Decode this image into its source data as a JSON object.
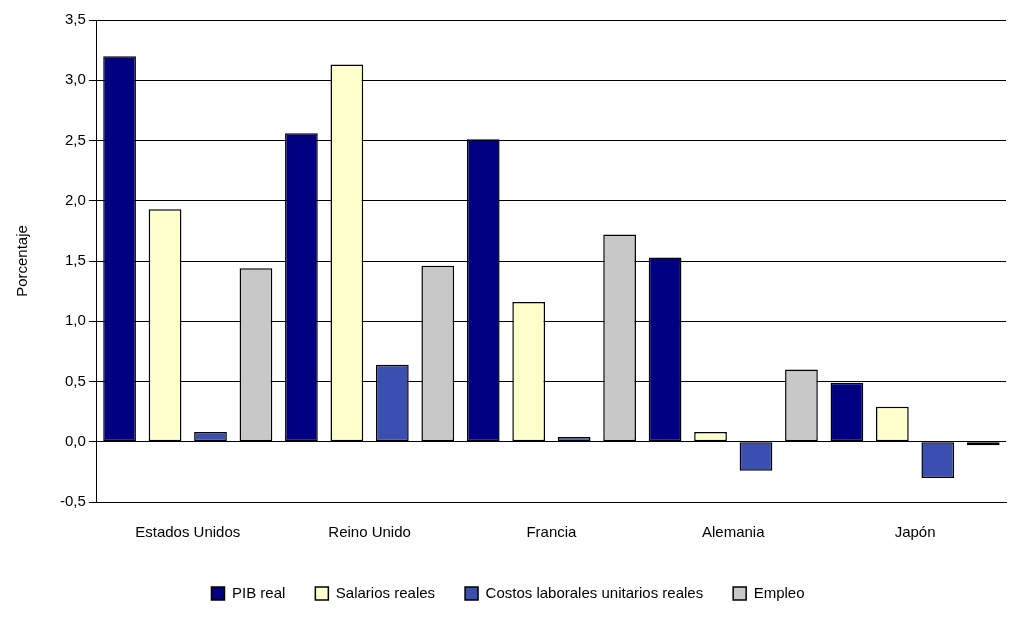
{
  "chart_data": {
    "type": "bar",
    "ylabel": "Porcentaje",
    "categories": [
      "Estados Unidos",
      "Reino Unido",
      "Francia",
      "Alemania",
      "Japón"
    ],
    "series": [
      {
        "name": "PIB real",
        "color": "#000080",
        "values": [
          3.2,
          2.56,
          2.51,
          1.53,
          0.49
        ]
      },
      {
        "name": "Salarios reales",
        "color": "#ffffcc",
        "values": [
          1.93,
          3.13,
          1.16,
          0.08,
          0.29
        ]
      },
      {
        "name": "Costos laborales unitarios reales",
        "color": "#3a4fb0",
        "values": [
          0.08,
          0.64,
          0.04,
          -0.24,
          -0.3
        ]
      },
      {
        "name": "Empleo",
        "color": "#c8c8c8",
        "values": [
          1.44,
          1.46,
          1.72,
          0.6,
          -0.03
        ]
      }
    ],
    "ylim": [
      -0.5,
      3.5
    ],
    "yticks": [
      {
        "value": -0.5,
        "label": "-0,5"
      },
      {
        "value": 0,
        "label": "0,0"
      },
      {
        "value": 0.5,
        "label": "0,5"
      },
      {
        "value": 1,
        "label": "1,0"
      },
      {
        "value": 1.5,
        "label": "1,5"
      },
      {
        "value": 2,
        "label": "2,0"
      },
      {
        "value": 2.5,
        "label": "2,5"
      },
      {
        "value": 3,
        "label": "3,0"
      },
      {
        "value": 3.5,
        "label": "3,5"
      }
    ],
    "grid": "y",
    "legend": "bottom"
  }
}
